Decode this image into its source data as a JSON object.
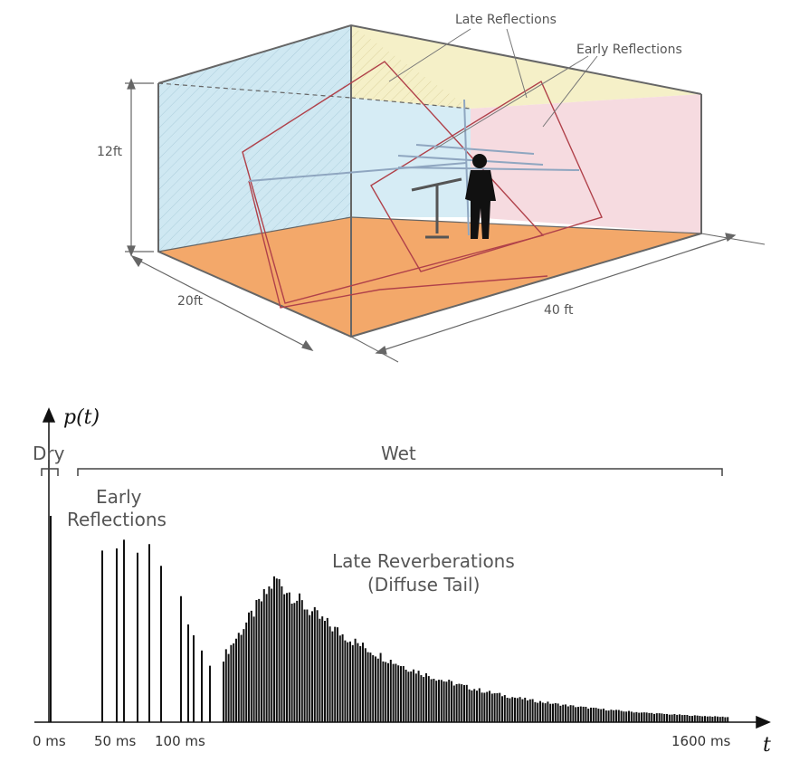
{
  "room": {
    "height_label": "12ft",
    "width_label": "20ft",
    "length_label": "40 ft",
    "late_reflections_label": "Late Reflections",
    "early_reflections_label": "Early Reflections"
  },
  "impulse": {
    "y_axis_label": "p(t)",
    "x_axis_label": "t",
    "dry_label": "Dry",
    "wet_label": "Wet",
    "early_label_line1": "Early",
    "early_label_line2": "Reflections",
    "late_label_line1": "Late Reverberations",
    "late_label_line2": "(Diffuse Tail)",
    "ticks": [
      "0 ms",
      "50 ms",
      "100 ms",
      "1600 ms"
    ],
    "direct_level": 0.95,
    "early_levels": [
      0.79,
      0.8,
      0.84,
      0.86,
      0.8,
      0.82,
      0.72,
      0.61,
      0.47,
      0.4,
      0.33,
      0.26
    ],
    "colors": {
      "ceiling": "#f5f0c8",
      "left_wall": "#cfe8f2",
      "back_wall": "#d6ecf5",
      "right_wall": "#f6dbe0",
      "floor": "#f3a86a",
      "reflection_path": "#b0414a",
      "ray": "#8fa6c0"
    }
  }
}
